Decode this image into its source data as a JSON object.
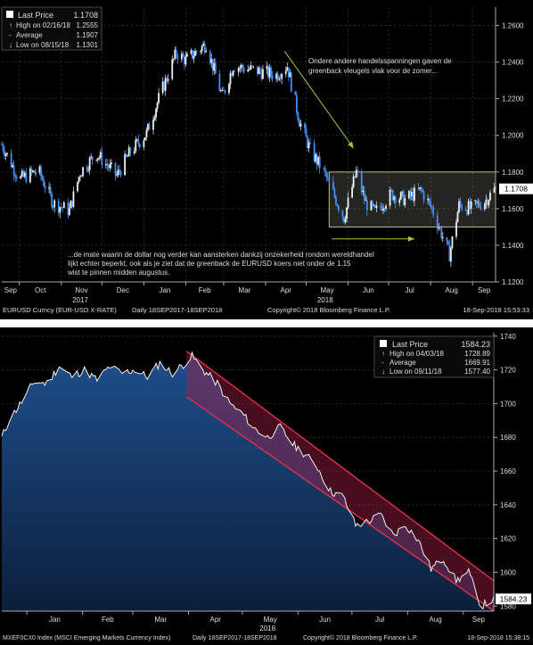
{
  "chart_data": [
    {
      "type": "candlestick",
      "ticker": "EURUSD Curncy (EUR-USD X-RATE)",
      "period": "Daily 18SEP2017-18SEP2018",
      "copyright": "Copyright© 2018 Bloomberg Finance L.P.",
      "timestamp": "18-Sep-2018 15:53:33",
      "legend": {
        "last": {
          "label": "Last Price",
          "value": "1.1708"
        },
        "high": {
          "label": "High on 02/16/18",
          "value": "1.2555"
        },
        "average": {
          "label": "Average",
          "value": "1.1907"
        },
        "low": {
          "label": "Low on 08/15/18",
          "value": "1.1301"
        }
      },
      "last_label": "1.1708",
      "yticks": [
        "1.2600",
        "1.2400",
        "1.2200",
        "1.2000",
        "1.1800",
        "1.1600",
        "1.1400",
        "1.1200"
      ],
      "ylim": [
        1.12,
        1.27
      ],
      "x_months": [
        "Sep",
        "Oct",
        "Nov",
        "Dec",
        "Jan",
        "Feb",
        "Mar",
        "Apr",
        "May",
        "Jun",
        "Jul",
        "Aug",
        "Sep"
      ],
      "x_years": [
        "2017",
        "2018"
      ],
      "annotation_top": [
        "Ondere andere handelsspanningen gaven de",
        "greenback vleugels vlak voor de zomer..."
      ],
      "annotation_bottom": [
        "...de mate waarin de dollar nog verder kan aansterken dankzij onzekerheid rondom wereldhandel",
        "lijkt echter beperkt, ook als je ziet dat de greenback de EURUSD koers niet onder de 1.15",
        "wist te pinnen midden augustus."
      ],
      "range_box": [
        1.15,
        1.18
      ],
      "trend_color": "#9acd32",
      "x": [
        "2017-09-18",
        "2017-10-01",
        "2017-10-15",
        "2017-10-26",
        "2017-11-07",
        "2017-11-15",
        "2017-11-27",
        "2017-12-12",
        "2017-12-22",
        "2018-01-03",
        "2018-01-12",
        "2018-01-25",
        "2018-02-01",
        "2018-02-16",
        "2018-02-28",
        "2018-03-08",
        "2018-03-27",
        "2018-04-09",
        "2018-04-17",
        "2018-04-26",
        "2018-05-04",
        "2018-05-14",
        "2018-05-29",
        "2018-06-07",
        "2018-06-14",
        "2018-06-21",
        "2018-07-03",
        "2018-07-13",
        "2018-07-25",
        "2018-08-02",
        "2018-08-15",
        "2018-08-22",
        "2018-08-31",
        "2018-09-10",
        "2018-09-18"
      ],
      "values": [
        1.195,
        1.176,
        1.181,
        1.163,
        1.159,
        1.18,
        1.19,
        1.178,
        1.191,
        1.201,
        1.22,
        1.245,
        1.241,
        1.25,
        1.221,
        1.238,
        1.235,
        1.233,
        1.238,
        1.208,
        1.192,
        1.18,
        1.155,
        1.18,
        1.163,
        1.158,
        1.168,
        1.165,
        1.17,
        1.16,
        1.135,
        1.162,
        1.16,
        1.164,
        1.171
      ]
    },
    {
      "type": "area",
      "ticker": "MXEF0CX0 Index (MSCI Emerging Markets Currency Index)",
      "period": "Daily 18SEP2017-18SEP2018",
      "copyright": "Copyright© 2018 Bloomberg Finance L.P.",
      "timestamp": "18-Sep-2018 15:38:15",
      "legend": {
        "last": {
          "label": "Last Price",
          "value": "1584.23"
        },
        "high": {
          "label": "High on 04/03/18",
          "value": "1728.89"
        },
        "average": {
          "label": "Average",
          "value": "1669.91"
        },
        "low": {
          "label": "Low on 09/11/18",
          "value": "1577.40"
        }
      },
      "last_label": "1584.23",
      "yticks": [
        "1740",
        "1720",
        "1700",
        "1680",
        "1660",
        "1640",
        "1620",
        "1600",
        "1580"
      ],
      "ylim": [
        1577,
        1742
      ],
      "x_months": [
        "Jan",
        "Feb",
        "Mar",
        "Apr",
        "May",
        "Jun",
        "Jul",
        "Aug",
        "Sep"
      ],
      "x_years": [
        "2018"
      ],
      "channel_color": "#e0304a",
      "x": [
        "2017-12-18",
        "2017-12-22",
        "2017-12-29",
        "2018-01-05",
        "2018-01-12",
        "2018-01-19",
        "2018-01-26",
        "2018-02-02",
        "2018-02-09",
        "2018-02-16",
        "2018-02-23",
        "2018-03-02",
        "2018-03-09",
        "2018-03-16",
        "2018-03-23",
        "2018-03-30",
        "2018-04-03",
        "2018-04-10",
        "2018-04-17",
        "2018-04-24",
        "2018-05-01",
        "2018-05-08",
        "2018-05-15",
        "2018-05-22",
        "2018-05-29",
        "2018-06-05",
        "2018-06-12",
        "2018-06-19",
        "2018-06-26",
        "2018-07-03",
        "2018-07-10",
        "2018-07-17",
        "2018-07-24",
        "2018-07-31",
        "2018-08-07",
        "2018-08-14",
        "2018-08-21",
        "2018-08-28",
        "2018-09-04",
        "2018-09-11",
        "2018-09-18"
      ],
      "values": [
        1680,
        1690,
        1701,
        1713,
        1712,
        1722,
        1716,
        1720,
        1714,
        1722,
        1718,
        1720,
        1716,
        1724,
        1718,
        1724,
        1728,
        1719,
        1712,
        1700,
        1694,
        1685,
        1680,
        1686,
        1676,
        1670,
        1662,
        1648,
        1645,
        1628,
        1630,
        1634,
        1622,
        1628,
        1619,
        1602,
        1608,
        1595,
        1600,
        1580,
        1584
      ]
    }
  ]
}
